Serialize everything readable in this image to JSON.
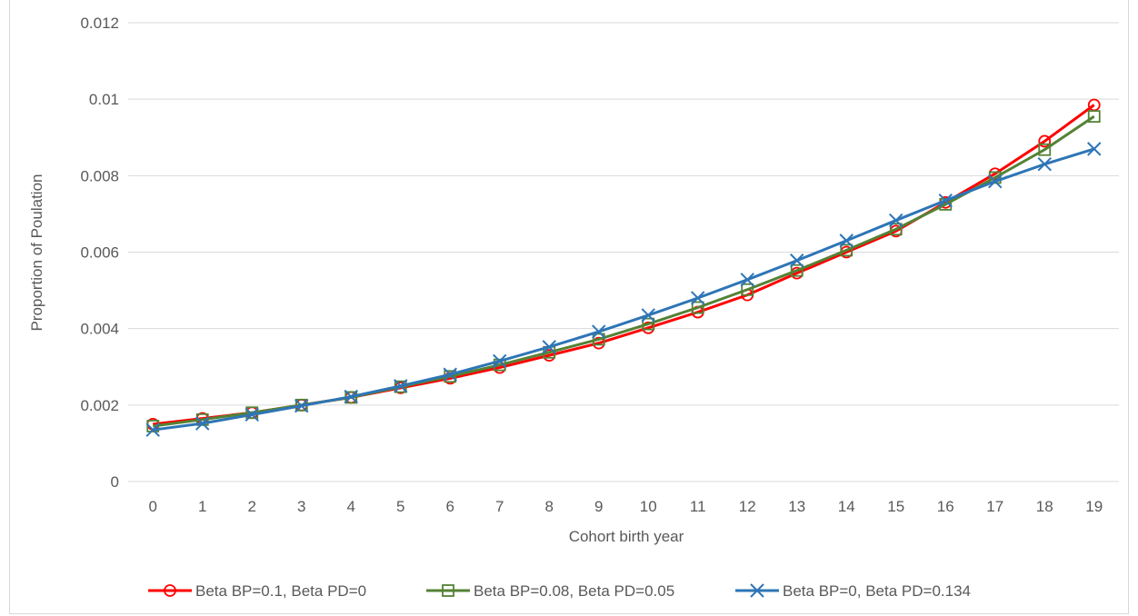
{
  "chart_data": {
    "type": "line",
    "title": "",
    "xlabel": "Cohort birth year",
    "ylabel": "Proportion of Poulation",
    "categories": [
      "0",
      "1",
      "2",
      "3",
      "4",
      "5",
      "6",
      "7",
      "8",
      "9",
      "10",
      "11",
      "12",
      "13",
      "14",
      "15",
      "16",
      "17",
      "18",
      "19"
    ],
    "ylim": [
      0,
      0.012
    ],
    "yticks": [
      "0",
      "0.002",
      "0.004",
      "0.006",
      "0.008",
      "0.01",
      "0.012"
    ],
    "ytick_values": [
      0,
      0.002,
      0.004,
      0.006,
      0.008,
      0.01,
      0.012
    ],
    "grid": "horizontal",
    "legend_position": "bottom",
    "series": [
      {
        "name": "Beta BP=0.1, Beta PD=0",
        "color": "#ff0000",
        "marker": "circle",
        "values": [
          0.0015,
          0.00165,
          0.0018,
          0.002,
          0.0022,
          0.00245,
          0.0027,
          0.00298,
          0.0033,
          0.00362,
          0.00402,
          0.00443,
          0.00488,
          0.00545,
          0.006,
          0.00655,
          0.0073,
          0.00805,
          0.0089,
          0.00985
        ]
      },
      {
        "name": "Beta BP=0.08, Beta PD=0.05",
        "color": "#548235",
        "marker": "square",
        "values": [
          0.00145,
          0.00162,
          0.0018,
          0.002,
          0.0022,
          0.00248,
          0.00275,
          0.00305,
          0.00338,
          0.00372,
          0.00412,
          0.00455,
          0.00502,
          0.00552,
          0.00605,
          0.0066,
          0.00725,
          0.00795,
          0.00868,
          0.00955
        ]
      },
      {
        "name": "Beta BP=0, Beta PD=0.134",
        "color": "#2e75b6",
        "marker": "x",
        "values": [
          0.00135,
          0.00152,
          0.00175,
          0.00198,
          0.00222,
          0.0025,
          0.0028,
          0.00315,
          0.00352,
          0.00392,
          0.00435,
          0.0048,
          0.00528,
          0.00578,
          0.0063,
          0.00683,
          0.00735,
          0.00785,
          0.0083,
          0.0087
        ]
      }
    ]
  }
}
